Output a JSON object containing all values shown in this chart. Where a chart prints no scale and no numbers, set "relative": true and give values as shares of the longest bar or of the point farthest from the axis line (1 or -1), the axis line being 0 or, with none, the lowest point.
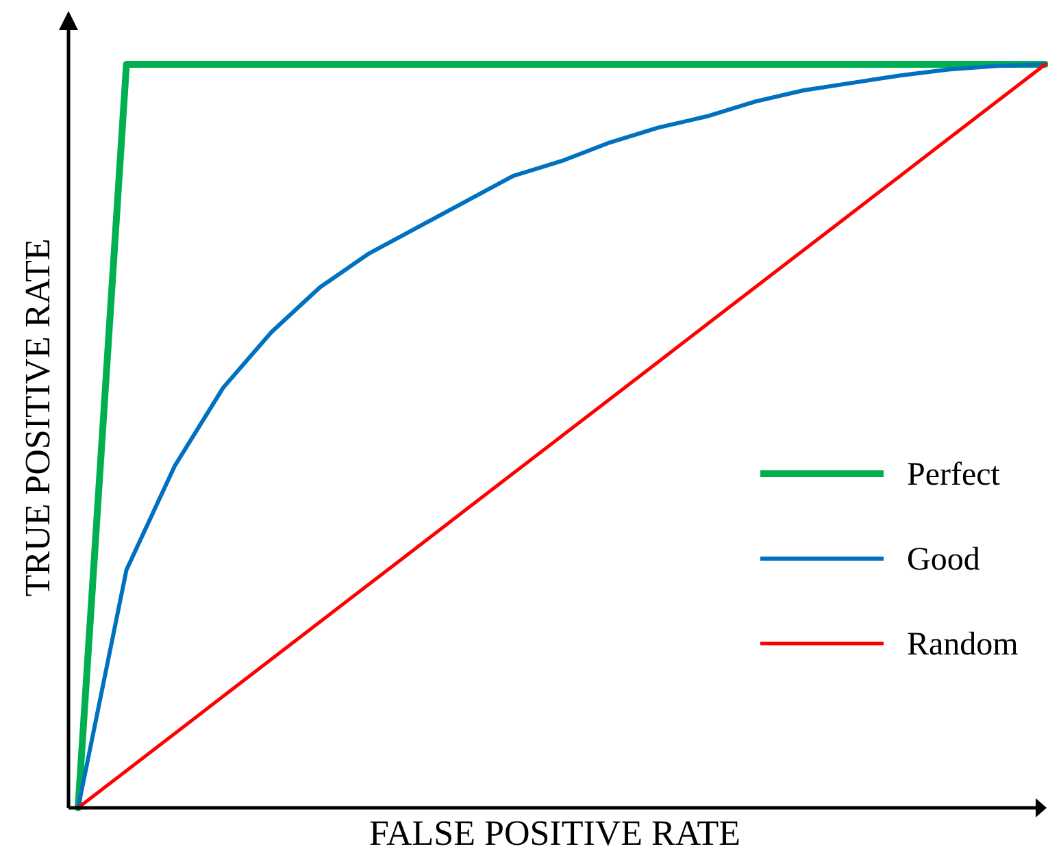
{
  "chart_data": {
    "type": "line",
    "xlabel": "FALSE POSITIVE RATE",
    "ylabel": "TRUE POSITIVE RATE",
    "relative": true,
    "legend": "right",
    "categories": [
      null,
      null,
      null,
      null,
      null,
      null,
      null,
      null,
      null,
      null,
      null,
      null,
      null,
      null,
      null,
      null,
      null,
      null,
      null,
      null,
      null
    ],
    "series": [
      {
        "name": "Perfect",
        "color": "#00b050",
        "values": [
          0,
          1,
          1,
          1,
          1,
          1,
          1,
          1,
          1,
          1,
          1,
          1,
          1,
          1,
          1,
          1,
          1,
          1,
          1,
          1,
          1
        ]
      },
      {
        "name": "Good",
        "color": "#0070c0",
        "values": [
          0,
          0.32,
          0.46,
          0.565,
          0.64,
          0.7,
          0.745,
          0.78,
          0.815,
          0.85,
          0.87,
          0.895,
          0.915,
          0.93,
          0.95,
          0.965,
          0.975,
          0.985,
          0.993,
          0.998,
          1
        ]
      },
      {
        "name": "Random",
        "color": "#ff0000",
        "values": [
          0,
          0.05,
          0.1,
          0.15,
          0.2,
          0.25,
          0.3,
          0.35,
          0.4,
          0.45,
          0.5,
          0.55,
          0.6,
          0.65,
          0.7,
          0.75,
          0.8,
          0.85,
          0.9,
          0.95,
          1
        ]
      }
    ]
  }
}
